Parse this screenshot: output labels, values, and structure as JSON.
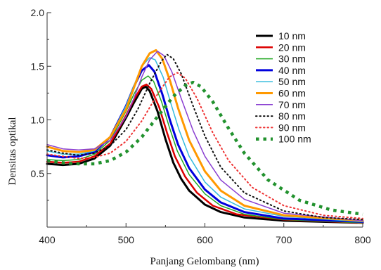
{
  "chart_data": {
    "type": "line",
    "title": "",
    "xlabel": "Panjang Gelombang (nm)",
    "ylabel": "Densitas optikal",
    "xlim": [
      400,
      800
    ],
    "ylim": [
      0,
      2.0
    ],
    "xticks": [
      {
        "value": 400,
        "label": "400"
      },
      {
        "value": 500,
        "label": "500"
      },
      {
        "value": 600,
        "label": "600"
      },
      {
        "value": 700,
        "label": "700"
      },
      {
        "value": 800,
        "label": "800"
      }
    ],
    "yticks": [
      {
        "value": 0.5,
        "label": "0.5"
      },
      {
        "value": 1.0,
        "label": "1.0"
      },
      {
        "value": 1.5,
        "label": "1.5"
      },
      {
        "value": 2.0,
        "label": "2.0"
      }
    ],
    "y_minor_ticks": [
      0.25,
      0.75,
      1.25,
      1.75
    ],
    "x_minor_ticks": [
      450,
      550,
      650,
      750
    ],
    "grid": false,
    "legend_position": "top-right",
    "series": [
      {
        "name": "10 nm",
        "color": "#000000",
        "style": "solid",
        "width": 3,
        "points": [
          [
            400,
            0.59
          ],
          [
            420,
            0.58
          ],
          [
            440,
            0.59
          ],
          [
            460,
            0.64
          ],
          [
            480,
            0.76
          ],
          [
            500,
            1.02
          ],
          [
            510,
            1.16
          ],
          [
            520,
            1.29
          ],
          [
            525,
            1.31
          ],
          [
            530,
            1.27
          ],
          [
            540,
            1.08
          ],
          [
            550,
            0.82
          ],
          [
            560,
            0.6
          ],
          [
            570,
            0.45
          ],
          [
            580,
            0.34
          ],
          [
            600,
            0.21
          ],
          [
            620,
            0.14
          ],
          [
            650,
            0.09
          ],
          [
            700,
            0.06
          ],
          [
            800,
            0.04
          ]
        ]
      },
      {
        "name": "20 nm",
        "color": "#dd0000",
        "style": "solid",
        "width": 2.5,
        "points": [
          [
            400,
            0.61
          ],
          [
            420,
            0.6
          ],
          [
            440,
            0.61
          ],
          [
            460,
            0.66
          ],
          [
            480,
            0.78
          ],
          [
            500,
            1.04
          ],
          [
            510,
            1.19
          ],
          [
            520,
            1.31
          ],
          [
            526,
            1.33
          ],
          [
            532,
            1.29
          ],
          [
            542,
            1.12
          ],
          [
            552,
            0.88
          ],
          [
            562,
            0.66
          ],
          [
            575,
            0.47
          ],
          [
            590,
            0.32
          ],
          [
            610,
            0.2
          ],
          [
            640,
            0.12
          ],
          [
            700,
            0.07
          ],
          [
            800,
            0.04
          ]
        ]
      },
      {
        "name": "30 nm",
        "color": "#22a822",
        "style": "solid",
        "width": 1.5,
        "points": [
          [
            400,
            0.63
          ],
          [
            420,
            0.62
          ],
          [
            440,
            0.63
          ],
          [
            460,
            0.68
          ],
          [
            480,
            0.81
          ],
          [
            500,
            1.08
          ],
          [
            510,
            1.24
          ],
          [
            520,
            1.37
          ],
          [
            528,
            1.41
          ],
          [
            535,
            1.36
          ],
          [
            545,
            1.17
          ],
          [
            555,
            0.93
          ],
          [
            565,
            0.71
          ],
          [
            580,
            0.49
          ],
          [
            600,
            0.31
          ],
          [
            620,
            0.2
          ],
          [
            650,
            0.12
          ],
          [
            700,
            0.07
          ],
          [
            800,
            0.04
          ]
        ]
      },
      {
        "name": "40 nm",
        "color": "#0000dd",
        "style": "solid",
        "width": 3,
        "points": [
          [
            400,
            0.67
          ],
          [
            420,
            0.65
          ],
          [
            440,
            0.66
          ],
          [
            460,
            0.7
          ],
          [
            480,
            0.84
          ],
          [
            500,
            1.13
          ],
          [
            510,
            1.31
          ],
          [
            520,
            1.46
          ],
          [
            529,
            1.51
          ],
          [
            536,
            1.45
          ],
          [
            546,
            1.24
          ],
          [
            556,
            0.99
          ],
          [
            566,
            0.77
          ],
          [
            580,
            0.55
          ],
          [
            600,
            0.35
          ],
          [
            620,
            0.23
          ],
          [
            650,
            0.14
          ],
          [
            700,
            0.08
          ],
          [
            800,
            0.05
          ]
        ]
      },
      {
        "name": "50 nm",
        "color": "#33bbdd",
        "style": "solid",
        "width": 1.5,
        "points": [
          [
            400,
            0.71
          ],
          [
            420,
            0.68
          ],
          [
            440,
            0.68
          ],
          [
            460,
            0.71
          ],
          [
            480,
            0.84
          ],
          [
            500,
            1.13
          ],
          [
            510,
            1.32
          ],
          [
            520,
            1.5
          ],
          [
            530,
            1.58
          ],
          [
            537,
            1.56
          ],
          [
            547,
            1.4
          ],
          [
            557,
            1.15
          ],
          [
            567,
            0.91
          ],
          [
            580,
            0.66
          ],
          [
            600,
            0.42
          ],
          [
            620,
            0.28
          ],
          [
            650,
            0.17
          ],
          [
            700,
            0.1
          ],
          [
            800,
            0.05
          ]
        ]
      },
      {
        "name": "60 nm",
        "color": "#ff9900",
        "style": "solid",
        "width": 3,
        "points": [
          [
            400,
            0.75
          ],
          [
            420,
            0.71
          ],
          [
            440,
            0.7
          ],
          [
            460,
            0.72
          ],
          [
            480,
            0.84
          ],
          [
            500,
            1.1
          ],
          [
            510,
            1.3
          ],
          [
            520,
            1.5
          ],
          [
            530,
            1.62
          ],
          [
            538,
            1.65
          ],
          [
            546,
            1.57
          ],
          [
            556,
            1.36
          ],
          [
            566,
            1.11
          ],
          [
            580,
            0.81
          ],
          [
            600,
            0.52
          ],
          [
            620,
            0.34
          ],
          [
            650,
            0.2
          ],
          [
            700,
            0.11
          ],
          [
            800,
            0.06
          ]
        ]
      },
      {
        "name": "70 nm",
        "color": "#8a3fd1",
        "style": "solid",
        "width": 1.5,
        "points": [
          [
            400,
            0.77
          ],
          [
            420,
            0.73
          ],
          [
            440,
            0.72
          ],
          [
            460,
            0.73
          ],
          [
            480,
            0.81
          ],
          [
            500,
            1.03
          ],
          [
            510,
            1.2
          ],
          [
            520,
            1.4
          ],
          [
            530,
            1.56
          ],
          [
            540,
            1.64
          ],
          [
            548,
            1.6
          ],
          [
            558,
            1.45
          ],
          [
            570,
            1.2
          ],
          [
            585,
            0.9
          ],
          [
            600,
            0.66
          ],
          [
            620,
            0.44
          ],
          [
            650,
            0.26
          ],
          [
            700,
            0.13
          ],
          [
            800,
            0.06
          ]
        ]
      },
      {
        "name": "80 nm",
        "color": "#111111",
        "style": "dotted",
        "width": 2,
        "points": [
          [
            400,
            0.72
          ],
          [
            420,
            0.69
          ],
          [
            440,
            0.67
          ],
          [
            460,
            0.69
          ],
          [
            480,
            0.76
          ],
          [
            500,
            0.91
          ],
          [
            515,
            1.1
          ],
          [
            530,
            1.34
          ],
          [
            545,
            1.55
          ],
          [
            552,
            1.61
          ],
          [
            560,
            1.57
          ],
          [
            570,
            1.43
          ],
          [
            585,
            1.13
          ],
          [
            600,
            0.85
          ],
          [
            620,
            0.56
          ],
          [
            650,
            0.32
          ],
          [
            700,
            0.15
          ],
          [
            750,
            0.09
          ],
          [
            800,
            0.07
          ]
        ]
      },
      {
        "name": "90 nm",
        "color": "#ee3333",
        "style": "dotted",
        "width": 2,
        "points": [
          [
            400,
            0.68
          ],
          [
            420,
            0.66
          ],
          [
            440,
            0.64
          ],
          [
            460,
            0.65
          ],
          [
            480,
            0.69
          ],
          [
            500,
            0.8
          ],
          [
            520,
            0.99
          ],
          [
            540,
            1.24
          ],
          [
            555,
            1.4
          ],
          [
            565,
            1.44
          ],
          [
            575,
            1.39
          ],
          [
            590,
            1.2
          ],
          [
            610,
            0.88
          ],
          [
            630,
            0.62
          ],
          [
            660,
            0.37
          ],
          [
            700,
            0.2
          ],
          [
            750,
            0.11
          ],
          [
            800,
            0.08
          ]
        ]
      },
      {
        "name": "100 nm",
        "color": "#22922e",
        "style": "dotted-thick",
        "width": 4.5,
        "points": [
          [
            400,
            0.62
          ],
          [
            420,
            0.6
          ],
          [
            440,
            0.59
          ],
          [
            460,
            0.59
          ],
          [
            480,
            0.62
          ],
          [
            500,
            0.7
          ],
          [
            520,
            0.84
          ],
          [
            540,
            1.03
          ],
          [
            560,
            1.22
          ],
          [
            575,
            1.32
          ],
          [
            585,
            1.35
          ],
          [
            595,
            1.31
          ],
          [
            610,
            1.17
          ],
          [
            630,
            0.92
          ],
          [
            650,
            0.69
          ],
          [
            680,
            0.44
          ],
          [
            720,
            0.25
          ],
          [
            760,
            0.16
          ],
          [
            800,
            0.12
          ]
        ]
      }
    ]
  }
}
